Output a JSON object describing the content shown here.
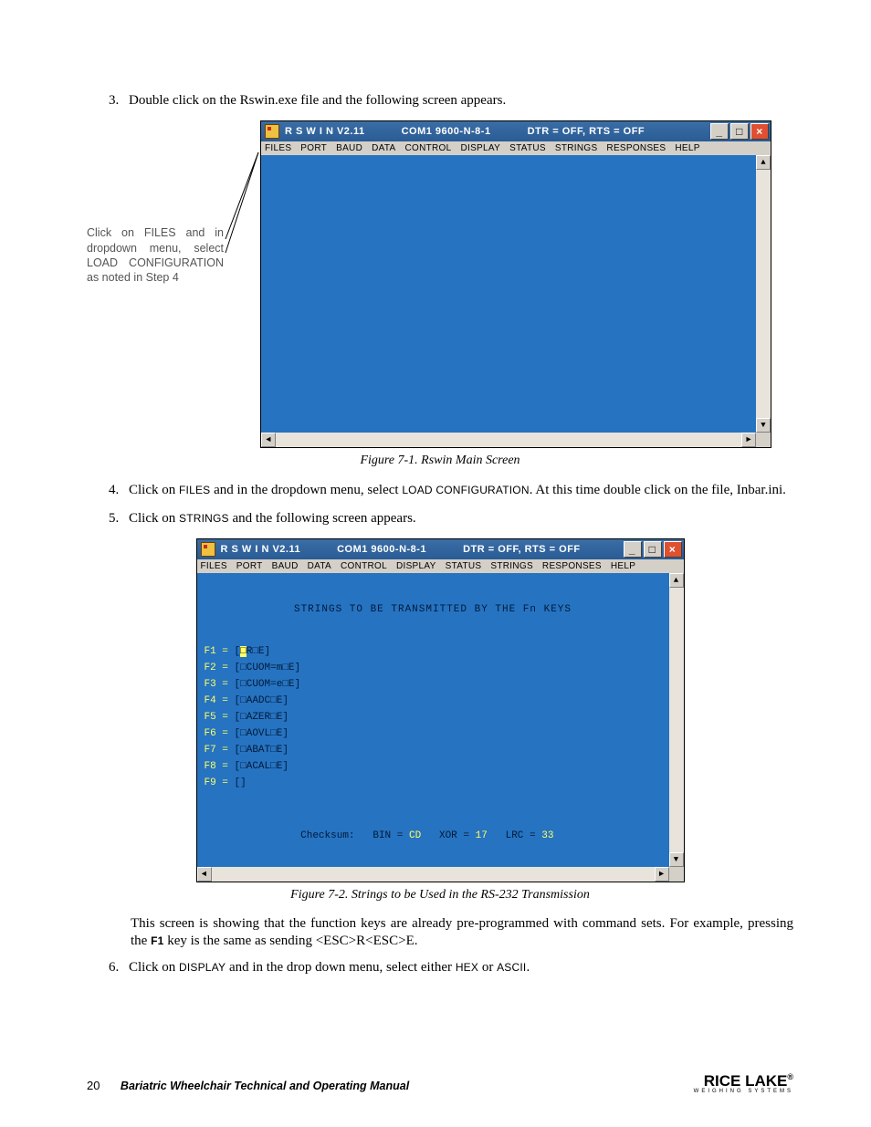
{
  "steps": {
    "s3": {
      "num": "3.",
      "text": "Double click on the Rswin.exe file and the following screen appears."
    },
    "s4": {
      "num": "4.",
      "pre": "Click on ",
      "m1": "FILES",
      "mid": " and in the dropdown menu, select ",
      "m2": "LOAD CONFIGURATION",
      "post": ". At this time double click on the file, Inbar.ini."
    },
    "s5": {
      "num": "5.",
      "pre": "Click on ",
      "m1": "STRINGS",
      "post": " and the following screen appears."
    },
    "s6": {
      "num": "6.",
      "pre": "Click on ",
      "m1": "DISPLAY",
      "mid": " and in the drop down menu, select either ",
      "m2": "HEX",
      "mid2": " or ",
      "m3": "ASCII",
      "post": "."
    }
  },
  "annotation": "Click on FILES and in dropdown menu, select LOAD CONFIGURATION as noted in Step 4",
  "captions": {
    "fig1": "Figure 7-1. Rswin Main Screen",
    "fig2": "Figure 7-2. Strings to be Used in the RS-232 Transmission"
  },
  "bodytext": "This screen is showing that the function keys are already pre-programmed with command sets. For example, pressing the F1 key is the same as sending <ESC>R<ESC>E.",
  "win": {
    "title_left": "R S W I N   V2.11",
    "title_mid": "COM1  9600-N-8-1",
    "title_right": "DTR = OFF, RTS = OFF",
    "menus": [
      "FILES",
      "PORT",
      "BAUD",
      "DATA",
      "CONTROL",
      "DISPLAY",
      "STATUS",
      "STRINGS",
      "RESPONSES",
      "HELP"
    ],
    "min": "_",
    "max": "□",
    "close": "×"
  },
  "strings_screen": {
    "heading": "STRINGS TO BE TRANSMITTED BY THE Fn KEYS",
    "lines": [
      {
        "label": "F1 = ",
        "val": "[□R□E]",
        "cursor": true
      },
      {
        "label": "F2 = ",
        "val": "[□CUOM=m□E]"
      },
      {
        "label": "F3 = ",
        "val": "[□CUOM=e□E]"
      },
      {
        "label": "F4 = ",
        "val": "[□AADC□E]"
      },
      {
        "label": "F5 = ",
        "val": "[□AZER□E]"
      },
      {
        "label": "F6 = ",
        "val": "[□AOVL□E]"
      },
      {
        "label": "F7 = ",
        "val": "[□ABAT□E]"
      },
      {
        "label": "F8 = ",
        "val": "[□ACAL□E]"
      },
      {
        "label": "F9 = ",
        "val": "[]"
      }
    ],
    "checksum": {
      "label": "Checksum:",
      "bin": "BIN = ",
      "bin_v": "CD",
      "xor": "XOR = ",
      "xor_v": "17",
      "lrc": "LRC = ",
      "lrc_v": "33"
    }
  },
  "footer": {
    "page": "20",
    "manual": "Bariatric Wheelchair Technical and Operating Manual",
    "logo_top": "RICE LAKE",
    "logo_sub": "WEIGHING SYSTEMS"
  }
}
